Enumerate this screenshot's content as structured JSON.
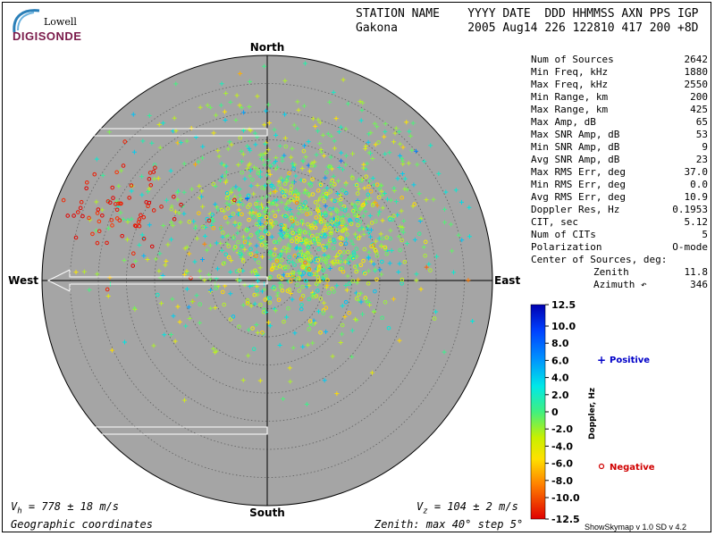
{
  "header": {
    "col_labels": "STATION NAME    YYYY DATE  DDD HHMMSS AXN PPS IGP",
    "col_values": "Gakona          2005 Aug14 226 122810 417 200 +8D"
  },
  "logo": {
    "line1": "Lowell",
    "line2": "DIGISONDE"
  },
  "compass": {
    "north": "North",
    "south": "South",
    "east": "East",
    "west": "West"
  },
  "stats": [
    {
      "label": "Num of Sources",
      "value": "2642"
    },
    {
      "label": "Min Freq, kHz",
      "value": "1880"
    },
    {
      "label": "Max Freq, kHz",
      "value": "2550"
    },
    {
      "label": "Min Range, km",
      "value": "200"
    },
    {
      "label": "Max Range, km",
      "value": "425"
    },
    {
      "label": "Max Amp, dB",
      "value": "65"
    },
    {
      "label": "Max SNR Amp, dB",
      "value": "53"
    },
    {
      "label": "Min SNR Amp, dB",
      "value": "9"
    },
    {
      "label": "Avg SNR Amp, dB",
      "value": "23"
    },
    {
      "label": "Max RMS Err, deg",
      "value": "37.0"
    },
    {
      "label": "Min RMS Err, deg",
      "value": "0.0"
    },
    {
      "label": "Avg RMS Err, deg",
      "value": "10.9"
    },
    {
      "label": "Doppler Res, Hz",
      "value": "0.1953"
    },
    {
      "label": "CIT, sec",
      "value": "5.12"
    },
    {
      "label": "Num of CITs",
      "value": "5"
    },
    {
      "label": "Polarization",
      "value": "O-mode"
    }
  ],
  "center": {
    "title": "Center of Sources, deg:",
    "zenith_label": "Zenith",
    "zenith_value": "11.8",
    "azimuth_label": "Azimuth",
    "azimuth_value": "346"
  },
  "legend": {
    "positive": "Positive",
    "negative": "Negative",
    "colorbar_title": "Doppler, Hz",
    "colorbar_ticks": [
      "12.5",
      "10.0",
      "8.0",
      "6.0",
      "4.0",
      "2.0",
      "0",
      "-2.0",
      "-4.0",
      "-6.0",
      "-8.0",
      "-10.0",
      "-12.5"
    ]
  },
  "footer": {
    "vh_base": "V",
    "vh_sub": "h",
    "vh_rest": " = 778 ± 18 m/s",
    "vz_base": "V",
    "vz_sub": "z",
    "vz_rest": " = 104 ± 2 m/s",
    "coords": "Geographic coordinates",
    "zenith_info": "Zenith: max 40°  step 5°",
    "version": "ShowSkymap v 1.0   SD v 4.2"
  },
  "colors": {
    "disk": "#a5a5a5",
    "positive_marker": "#0000c8",
    "negative_marker": "#d00000"
  },
  "chart_data": {
    "type": "scatter",
    "projection": "polar-sky",
    "zenith_max_deg": 40,
    "zenith_step_deg": 5,
    "velocity_arrows_azimuth_deg": 270,
    "clusters": [
      {
        "name": "positive-main",
        "az_deg": 15,
        "zen_deg": 12,
        "spread_deg": 14,
        "count": 900,
        "doppler_hz": 1.5,
        "marker": "+"
      },
      {
        "name": "positive-core",
        "az_deg": 45,
        "zen_deg": 10,
        "spread_deg": 8,
        "count": 500,
        "doppler_hz": 0.5,
        "marker": "o"
      },
      {
        "name": "negative-nw",
        "az_deg": 295,
        "zen_deg": 30,
        "spread_deg": 6,
        "count": 70,
        "doppler_hz": -11,
        "marker": "o"
      }
    ],
    "colorbar": {
      "min": -12.5,
      "max": 12.5,
      "label": "Doppler, Hz"
    }
  }
}
